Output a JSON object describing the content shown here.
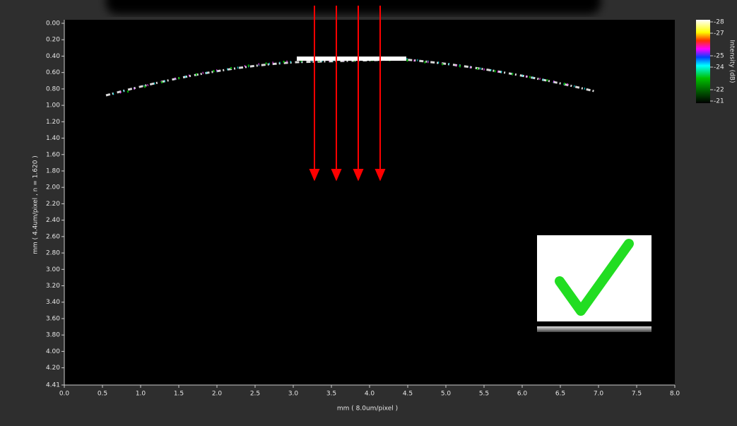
{
  "chart_data": {
    "type": "image",
    "xlabel": "mm ( 8.0um/pixel )",
    "ylabel": "mm  ( 4.4um/pixel ,  n = 1.620 )",
    "colorbar_label": "Intensity (dB)",
    "xlim": [
      0,
      8
    ],
    "ylim": [
      4.41,
      0
    ],
    "xticks": [
      {
        "value": 0,
        "label": "0.0"
      },
      0.5,
      {
        "value": 1,
        "label": "1.0"
      },
      1.5,
      {
        "value": 2,
        "label": "2.0"
      },
      2.5,
      {
        "value": 3,
        "label": "3.0"
      },
      3.5,
      {
        "value": 4,
        "label": "4.0"
      },
      4.5,
      {
        "value": 5,
        "label": "5.0"
      },
      5.5,
      {
        "value": 6,
        "label": "6.0"
      },
      6.5,
      {
        "value": 7,
        "label": "7.0"
      },
      7.5,
      {
        "value": 8,
        "label": "8.0"
      }
    ],
    "yticks": [
      {
        "value": 0,
        "label": "0.00"
      },
      {
        "value": 0.2,
        "label": "0.20"
      },
      {
        "value": 0.4,
        "label": "0.40"
      },
      {
        "value": 0.6,
        "label": "0.60"
      },
      {
        "value": 0.8,
        "label": "0.80"
      },
      {
        "value": 1,
        "label": "1.00"
      },
      {
        "value": 1.2,
        "label": "1.20"
      },
      {
        "value": 1.4,
        "label": "1.40"
      },
      {
        "value": 1.6,
        "label": "1.60"
      },
      {
        "value": 1.8,
        "label": "1.80"
      },
      {
        "value": 2,
        "label": "2.00"
      },
      {
        "value": 2.2,
        "label": "2.20"
      },
      {
        "value": 2.4,
        "label": "2.40"
      },
      {
        "value": 2.6,
        "label": "2.60"
      },
      {
        "value": 2.8,
        "label": "2.80"
      },
      {
        "value": 3,
        "label": "3.00"
      },
      {
        "value": 3.2,
        "label": "3.20"
      },
      {
        "value": 3.4,
        "label": "3.40"
      },
      {
        "value": 3.6,
        "label": "3.60"
      },
      {
        "value": 3.8,
        "label": "3.80"
      },
      {
        "value": 4,
        "label": "4.00"
      },
      {
        "value": 4.2,
        "label": "4.20"
      },
      {
        "value": 4.41,
        "label": "4.41"
      }
    ],
    "clim": [
      -21,
      -28
    ],
    "cticks": [
      -28,
      -27,
      -25,
      -24,
      -22,
      -21
    ]
  }
}
